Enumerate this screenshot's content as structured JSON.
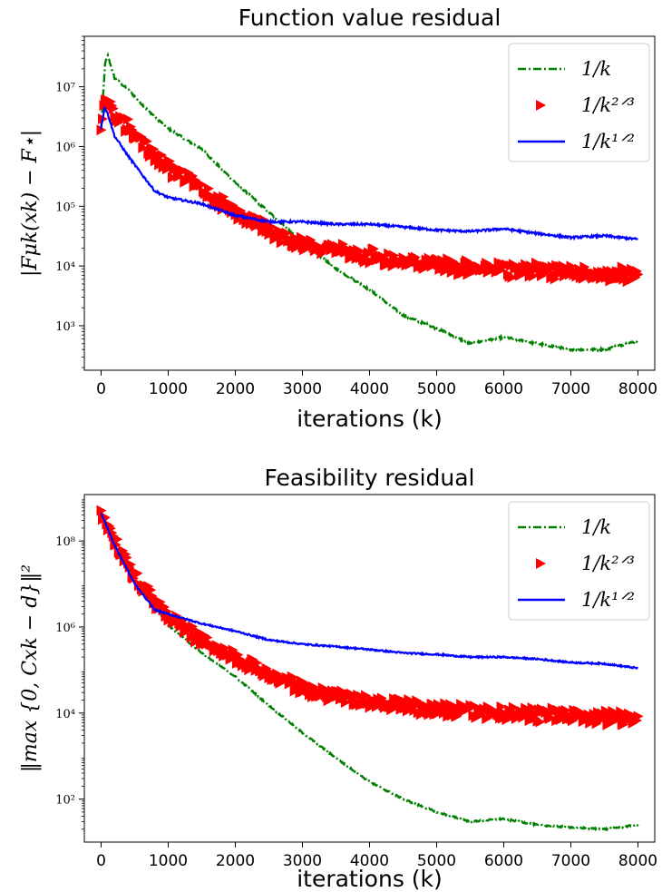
{
  "colors": {
    "series_1_over_k": "#008000",
    "series_1_over_k23": "#ff0000",
    "series_1_over_k12": "#0000ff"
  },
  "chart_data": [
    {
      "type": "line",
      "title": "Function value residual",
      "xlabel": "iterations (k)",
      "ylabel": "|F_{μ_k}(x^k) − F*|",
      "ylabel_display": "|Fμk(xk) − F⋆|",
      "yscale": "log",
      "xlim": [
        -250,
        8250
      ],
      "ylim": [
        180,
        70000000
      ],
      "xticks": [
        0,
        1000,
        2000,
        3000,
        4000,
        5000,
        6000,
        7000,
        8000
      ],
      "xtick_labels": [
        "0",
        "1000",
        "2000",
        "3000",
        "4000",
        "5000",
        "6000",
        "7000",
        "8000"
      ],
      "yticks": [
        1000,
        10000,
        100000,
        1000000,
        10000000
      ],
      "ytick_labels": [
        "10³",
        "10⁴",
        "10⁵",
        "10⁶",
        "10⁷"
      ],
      "legend": {
        "position": "top-right",
        "entries": [
          "1/k",
          "1/k^{2/3}",
          "1/k^{1/2}"
        ],
        "display": [
          "1/k",
          "1/k²ᐟ³",
          "1/k¹ᐟ²"
        ]
      },
      "series": [
        {
          "name": "1/k",
          "style": "dashdot",
          "x": [
            0,
            60,
            100,
            200,
            400,
            700,
            1000,
            1500,
            2000,
            2500,
            3000,
            3500,
            4000,
            4500,
            5000,
            5500,
            6000,
            6500,
            7000,
            7500,
            8000
          ],
          "y": [
            2000000,
            25000000,
            33000000,
            14000000,
            9000000,
            4000000,
            2000000,
            900000,
            250000,
            80000,
            25000,
            9000,
            4000,
            1500,
            900,
            500,
            650,
            500,
            400,
            400,
            560
          ]
        },
        {
          "name": "1/k^{2/3}",
          "style": "triangles",
          "x": [
            0,
            50,
            100,
            200,
            400,
            700,
            1000,
            1500,
            2000,
            2500,
            3000,
            3500,
            4000,
            4500,
            5000,
            5500,
            6000,
            6500,
            7000,
            7500,
            8000
          ],
          "y": [
            1800000,
            7000000,
            6000000,
            3500000,
            2200000,
            900000,
            450000,
            200000,
            80000,
            40000,
            22000,
            18000,
            15000,
            12000,
            11000,
            9000,
            9000,
            8500,
            8000,
            7500,
            6500
          ]
        },
        {
          "name": "1/k^{1/2}",
          "style": "solid",
          "x": [
            0,
            50,
            100,
            200,
            400,
            600,
            800,
            1000,
            1500,
            2000,
            2500,
            3000,
            3500,
            4000,
            4500,
            5000,
            5500,
            6000,
            6500,
            7000,
            7500,
            8000
          ],
          "y": [
            2000000,
            4500000,
            3500000,
            1500000,
            700000,
            350000,
            180000,
            140000,
            110000,
            70000,
            55000,
            55000,
            50000,
            50000,
            45000,
            40000,
            38000,
            42000,
            35000,
            30000,
            32000,
            28000
          ]
        }
      ]
    },
    {
      "type": "line",
      "title": "Feasibility residual",
      "xlabel": "iterations (k)",
      "ylabel": "||max{0, Cx^k − d}||^2",
      "ylabel_display": "‖max {0, Cxk − d}‖²",
      "yscale": "log",
      "xlim": [
        -250,
        8250
      ],
      "ylim": [
        10,
        1200000000
      ],
      "xticks": [
        0,
        1000,
        2000,
        3000,
        4000,
        5000,
        6000,
        7000,
        8000
      ],
      "xtick_labels": [
        "0",
        "1000",
        "2000",
        "3000",
        "4000",
        "5000",
        "6000",
        "7000",
        "8000"
      ],
      "yticks": [
        100,
        10000,
        1000000,
        100000000
      ],
      "ytick_labels": [
        "10²",
        "10⁴",
        "10⁶",
        "10⁸"
      ],
      "legend": {
        "position": "top-right",
        "entries": [
          "1/k",
          "1/k^{2/3}",
          "1/k^{1/2}"
        ],
        "display": [
          "1/k",
          "1/k²ᐟ³",
          "1/k¹ᐟ²"
        ]
      },
      "series": [
        {
          "name": "1/k",
          "style": "dashdot",
          "x": [
            0,
            200,
            500,
            800,
            1000,
            1500,
            2000,
            2500,
            3000,
            3500,
            4000,
            4500,
            5000,
            5500,
            6000,
            6500,
            7000,
            7500,
            8000
          ],
          "y": [
            500000000,
            90000000,
            12000000,
            3000000,
            1100000,
            250000,
            70000,
            15000,
            3500,
            900,
            250,
            100,
            50,
            30,
            35,
            25,
            22,
            20,
            25
          ]
        },
        {
          "name": "1/k^{2/3}",
          "style": "triangles",
          "x": [
            0,
            200,
            500,
            800,
            1000,
            1500,
            2000,
            2500,
            3000,
            3500,
            4000,
            4500,
            5000,
            5500,
            6000,
            6500,
            7000,
            7500,
            8000
          ],
          "y": [
            500000000,
            100000000,
            15000000,
            4000000,
            1800000,
            500000,
            200000,
            80000,
            40000,
            25000,
            18000,
            15000,
            12000,
            11000,
            10000,
            9500,
            9000,
            8000,
            7000
          ]
        },
        {
          "name": "1/k^{1/2}",
          "style": "solid",
          "x": [
            0,
            200,
            500,
            800,
            1000,
            1500,
            2000,
            2500,
            3000,
            3500,
            4000,
            4500,
            5000,
            5500,
            6000,
            6500,
            7000,
            7500,
            8000
          ],
          "y": [
            450000000,
            80000000,
            10000000,
            2500000,
            2000000,
            1200000,
            800000,
            500000,
            400000,
            350000,
            300000,
            250000,
            230000,
            200000,
            200000,
            180000,
            150000,
            140000,
            110000
          ]
        }
      ]
    }
  ]
}
